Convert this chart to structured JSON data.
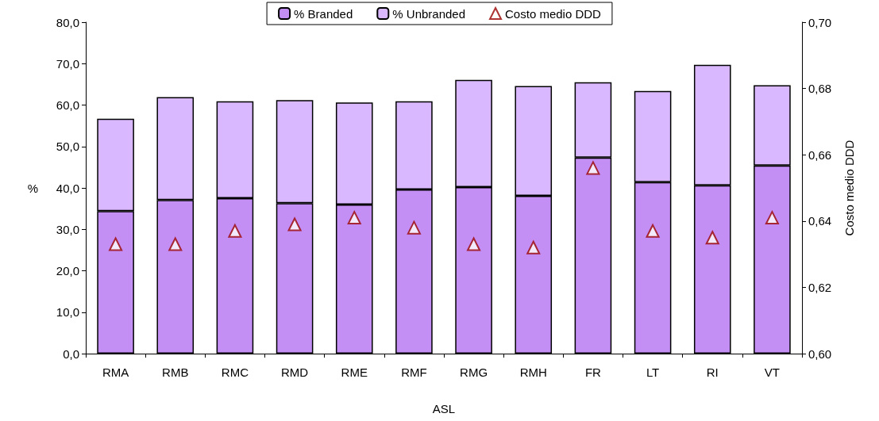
{
  "chart_data": {
    "type": "bar",
    "stacked": true,
    "xlabel": "ASL",
    "ylabel": "%",
    "y2label": "Costo medio DDD",
    "categories": [
      "RMA",
      "RMB",
      "RMC",
      "RMD",
      "RME",
      "RMF",
      "RMG",
      "RMH",
      "FR",
      "LT",
      "RI",
      "VT"
    ],
    "series": [
      {
        "name": "% Branded",
        "color": "#c48ff5",
        "values": [
          34.4,
          37.1,
          37.5,
          36.3,
          36.0,
          39.6,
          40.2,
          38.1,
          47.3,
          41.4,
          40.6,
          45.4
        ]
      },
      {
        "name": "% Unbranded",
        "color": "#d9b8ff",
        "values": [
          22.3,
          24.8,
          23.4,
          24.9,
          24.6,
          21.3,
          25.9,
          26.5,
          18.2,
          22.0,
          29.1,
          19.4
        ]
      },
      {
        "name": "Costo medio DDD",
        "type": "scatter",
        "axis": "y2",
        "marker": "triangle",
        "color": "#990000",
        "values": [
          0.633,
          0.633,
          0.637,
          0.639,
          0.641,
          0.638,
          0.633,
          0.632,
          0.656,
          0.637,
          0.635,
          0.641
        ]
      }
    ],
    "ylim": [
      0,
      80
    ],
    "yticks": [
      {
        "value": 0,
        "label": "0,0"
      },
      {
        "value": 10,
        "label": "10,0"
      },
      {
        "value": 20,
        "label": "20,0"
      },
      {
        "value": 30,
        "label": "30,0"
      },
      {
        "value": 40,
        "label": "40,0"
      },
      {
        "value": 50,
        "label": "50,0"
      },
      {
        "value": 60,
        "label": "60,0"
      },
      {
        "value": 70,
        "label": "70,0"
      },
      {
        "value": 80,
        "label": "80,0"
      }
    ],
    "y2lim": [
      0.6,
      0.7
    ],
    "y2ticks": [
      {
        "value": 0.6,
        "label": "0,60"
      },
      {
        "value": 0.62,
        "label": "0,62"
      },
      {
        "value": 0.64,
        "label": "0,64"
      },
      {
        "value": 0.66,
        "label": "0,66"
      },
      {
        "value": 0.68,
        "label": "0,68"
      },
      {
        "value": 0.7,
        "label": "0,70"
      }
    ],
    "grid": false,
    "legend": "top"
  }
}
